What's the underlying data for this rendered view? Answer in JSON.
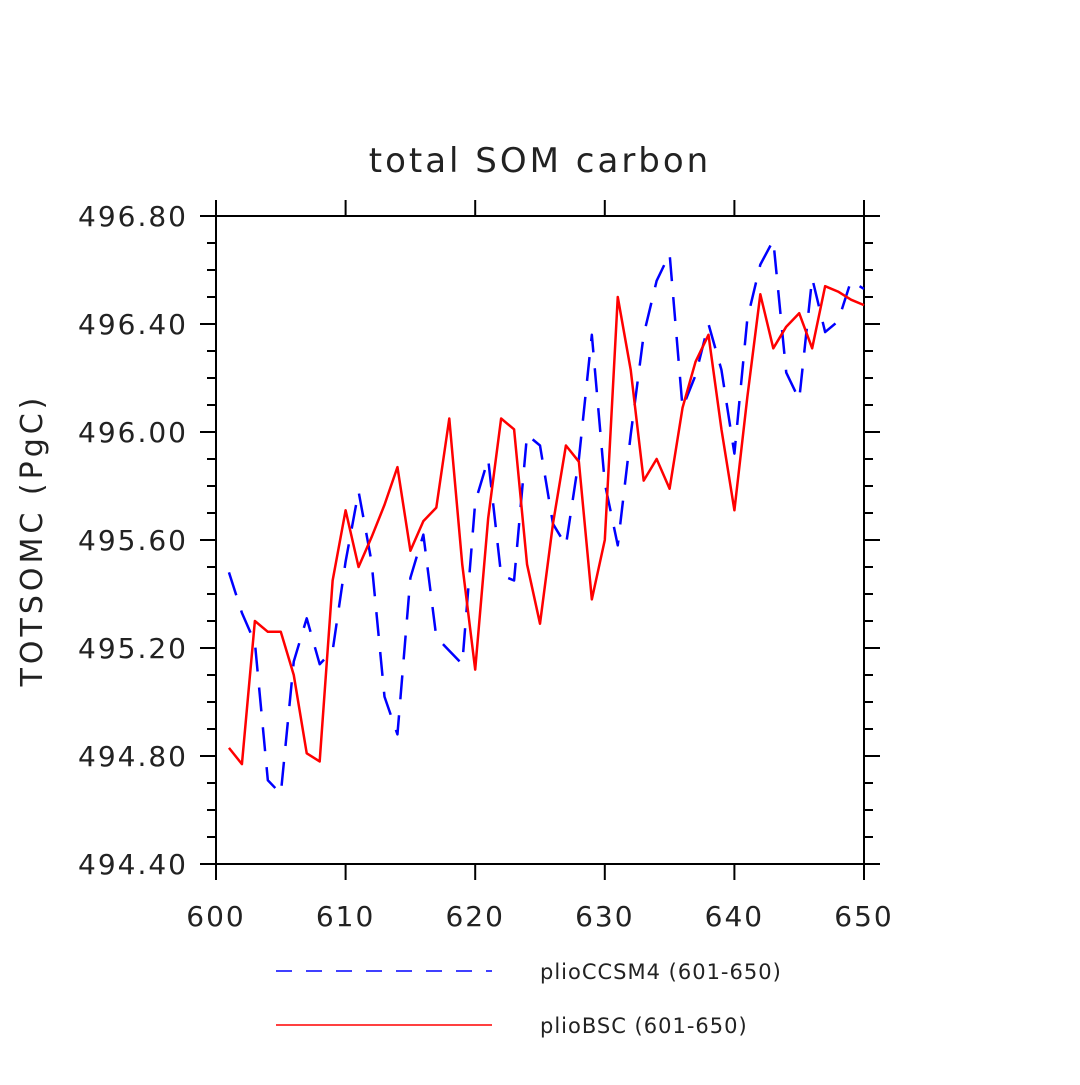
{
  "chart_data": {
    "type": "line",
    "title": "total SOM carbon",
    "xlabel": "",
    "ylabel": "TOTSOMC  (PgC)",
    "xlim": [
      600,
      650
    ],
    "ylim": [
      494.4,
      496.8
    ],
    "xticks": [
      "600",
      "610",
      "620",
      "630",
      "640",
      "650"
    ],
    "yticks": [
      "494.40",
      "494.80",
      "495.20",
      "495.60",
      "496.00",
      "496.40",
      "496.80"
    ],
    "legend_position": "bottom",
    "x": [
      601,
      602,
      603,
      604,
      605,
      606,
      607,
      608,
      609,
      610,
      611,
      612,
      613,
      614,
      615,
      616,
      617,
      618,
      619,
      620,
      621,
      622,
      623,
      624,
      625,
      626,
      627,
      628,
      629,
      630,
      631,
      632,
      633,
      634,
      635,
      636,
      637,
      638,
      639,
      640,
      641,
      642,
      643,
      644,
      645,
      646,
      647,
      648,
      649,
      650
    ],
    "series": [
      {
        "name": "plioCCSM4 (601-650)",
        "color": "#0000ff",
        "style": "dashed",
        "values": [
          495.48,
          495.33,
          495.22,
          494.71,
          494.66,
          495.15,
          495.31,
          495.14,
          495.19,
          495.52,
          495.78,
          495.52,
          495.02,
          494.88,
          495.46,
          495.62,
          495.24,
          495.19,
          495.14,
          495.74,
          495.9,
          495.47,
          495.45,
          495.99,
          495.95,
          495.66,
          495.58,
          495.9,
          496.36,
          495.81,
          495.58,
          495.99,
          496.36,
          496.56,
          496.66,
          496.09,
          496.21,
          496.4,
          496.23,
          495.92,
          496.42,
          496.62,
          496.71,
          496.22,
          496.12,
          496.57,
          496.37,
          496.41,
          496.56,
          496.53
        ]
      },
      {
        "name": "plioBSC (601-650)",
        "color": "#ff0000",
        "style": "solid",
        "values": [
          494.83,
          494.77,
          495.3,
          495.26,
          495.26,
          495.1,
          494.81,
          494.78,
          495.45,
          495.71,
          495.5,
          495.61,
          495.73,
          495.87,
          495.56,
          495.67,
          495.72,
          496.05,
          495.51,
          495.12,
          495.68,
          496.05,
          496.01,
          495.51,
          495.29,
          495.66,
          495.95,
          495.89,
          495.38,
          495.6,
          496.5,
          496.23,
          495.82,
          495.9,
          495.79,
          496.09,
          496.26,
          496.36,
          496.01,
          495.71,
          496.13,
          496.51,
          496.31,
          496.39,
          496.44,
          496.31,
          496.54,
          496.52,
          496.49,
          496.47
        ]
      }
    ]
  }
}
